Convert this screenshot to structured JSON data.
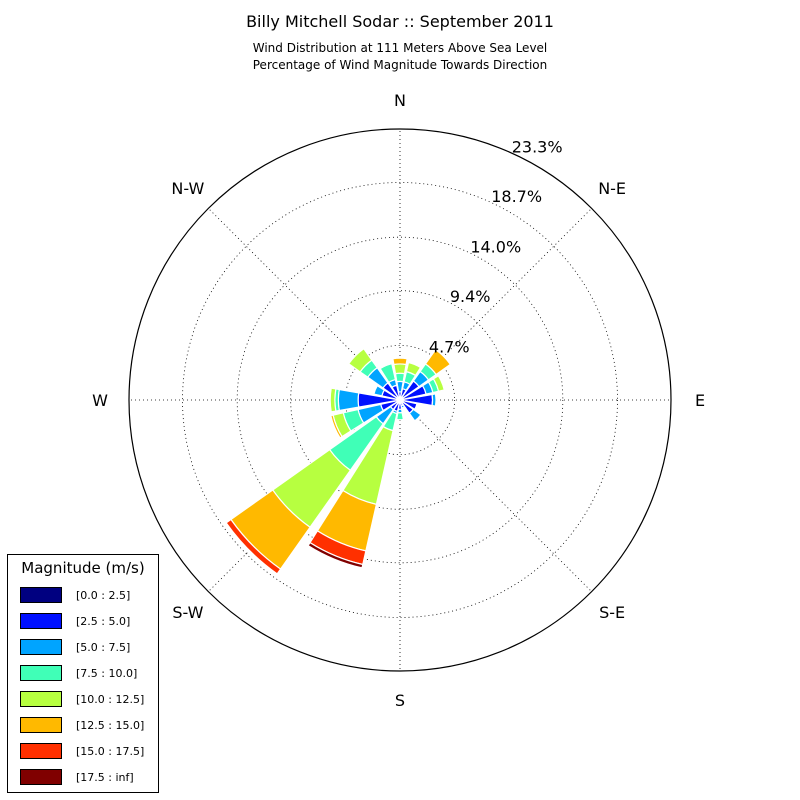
{
  "header": {
    "title": "Billy Mitchell Sodar :: September 2011",
    "subtitle_line1": "Wind Distribution at 111 Meters Above Sea Level",
    "subtitle_line2": "Percentage of Wind Magnitude Towards Direction"
  },
  "legend": {
    "title": "Magnitude (m/s)",
    "items": [
      {
        "label": "[0.0 : 2.5]",
        "color": "#000080"
      },
      {
        "label": "[2.5 : 5.0]",
        "color": "#0010ff"
      },
      {
        "label": "[5.0 : 7.5]",
        "color": "#00a4ff"
      },
      {
        "label": "[7.5 : 10.0]",
        "color": "#40ffb7"
      },
      {
        "label": "[10.0 : 12.5]",
        "color": "#b7ff40"
      },
      {
        "label": "[12.5 : 15.0]",
        "color": "#ffb900"
      },
      {
        "label": "[15.0 : 17.5]",
        "color": "#ff3000"
      },
      {
        "label": "[17.5 : inf]",
        "color": "#800000"
      }
    ]
  },
  "chart_data": {
    "type": "windrose",
    "title": "Billy Mitchell Sodar :: September 2011",
    "subtitle": "Wind Distribution at 111 Meters Above Sea Level / Percentage of Wind Magnitude Towards Direction",
    "radial_unit": "%",
    "radial_max": 23.3,
    "radial_ticks": [
      4.7,
      9.4,
      14.0,
      18.7,
      23.3
    ],
    "radial_tick_labels": [
      "4.7%",
      "9.4%",
      "14.0%",
      "18.7%",
      "23.3%"
    ],
    "direction_labels": [
      {
        "label": "N",
        "angle": 0
      },
      {
        "label": "N-E",
        "angle": 45
      },
      {
        "label": "E",
        "angle": 90
      },
      {
        "label": "S-E",
        "angle": 135
      },
      {
        "label": "S",
        "angle": 180
      },
      {
        "label": "S-W",
        "angle": 225
      },
      {
        "label": "W",
        "angle": 270
      },
      {
        "label": "N-W",
        "angle": 315
      }
    ],
    "grid": true,
    "legend_position": "bottom-left",
    "speed_bins": [
      "[0.0 : 2.5]",
      "[2.5 : 5.0]",
      "[5.0 : 7.5]",
      "[7.5 : 10.0]",
      "[10.0 : 12.5]",
      "[12.5 : 15.0]",
      "[15.0 : 17.5]",
      "[17.5 : inf]"
    ],
    "sector_width_deg": 22.5,
    "directions_deg": [
      0,
      22.5,
      45,
      67.5,
      90,
      112.5,
      135,
      157.5,
      180,
      202.5,
      225,
      247.5,
      270,
      292.5,
      315,
      337.5
    ],
    "series": [
      {
        "name": "[0.0 : 2.5]",
        "values": [
          0.2,
          0.2,
          0.2,
          0.2,
          0.2,
          0.2,
          0.2,
          0.2,
          0.2,
          0.2,
          0.2,
          0.2,
          0.2,
          0.2,
          0.2,
          0.2
        ]
      },
      {
        "name": "[2.5 : 5.0]",
        "values": [
          0.5,
          0.8,
          1.8,
          2.1,
          2.6,
          1.3,
          1.2,
          0.3,
          0.6,
          0.8,
          0.8,
          1.5,
          3.4,
          1.4,
          1.6,
          1.1
        ]
      },
      {
        "name": "[5.0 : 7.5]",
        "values": [
          0.9,
          0.6,
          1.0,
          0.6,
          0.3,
          0.1,
          0.8,
          0.2,
          0.3,
          0.2,
          1.5,
          2.0,
          1.7,
          0.7,
          1.6,
          0.5
        ]
      },
      {
        "name": "[7.5 : 10.0]",
        "values": [
          0.7,
          0.9,
          0.8,
          0.5,
          0.1,
          0.0,
          0.0,
          0.0,
          0.6,
          1.5,
          4.9,
          1.3,
          0.3,
          0.0,
          0.8,
          1.4
        ]
      },
      {
        "name": "[10.0 : 12.5]",
        "values": [
          0.8,
          0.8,
          0.0,
          0.5,
          0.0,
          0.0,
          0.0,
          0.0,
          0.0,
          6.5,
          6.0,
          0.9,
          0.4,
          0.0,
          1.2,
          0.1
        ]
      },
      {
        "name": "[12.5 : 15.0]",
        "values": [
          0.5,
          0.0,
          1.5,
          0.0,
          0.0,
          0.0,
          0.0,
          0.0,
          0.0,
          4.1,
          4.4,
          0.2,
          0.0,
          0.0,
          0.0,
          0.0
        ]
      },
      {
        "name": "[15.0 : 17.5]",
        "values": [
          0.0,
          0.0,
          0.0,
          0.0,
          0.0,
          0.0,
          0.0,
          0.0,
          0.0,
          1.2,
          0.5,
          0.0,
          0.0,
          0.0,
          0.0,
          0.0
        ]
      },
      {
        "name": "[17.5 : inf]",
        "values": [
          0.0,
          0.0,
          0.0,
          0.0,
          0.0,
          0.0,
          0.0,
          0.0,
          0.0,
          0.3,
          0.0,
          0.0,
          0.0,
          0.0,
          0.0,
          0.0
        ]
      }
    ]
  }
}
